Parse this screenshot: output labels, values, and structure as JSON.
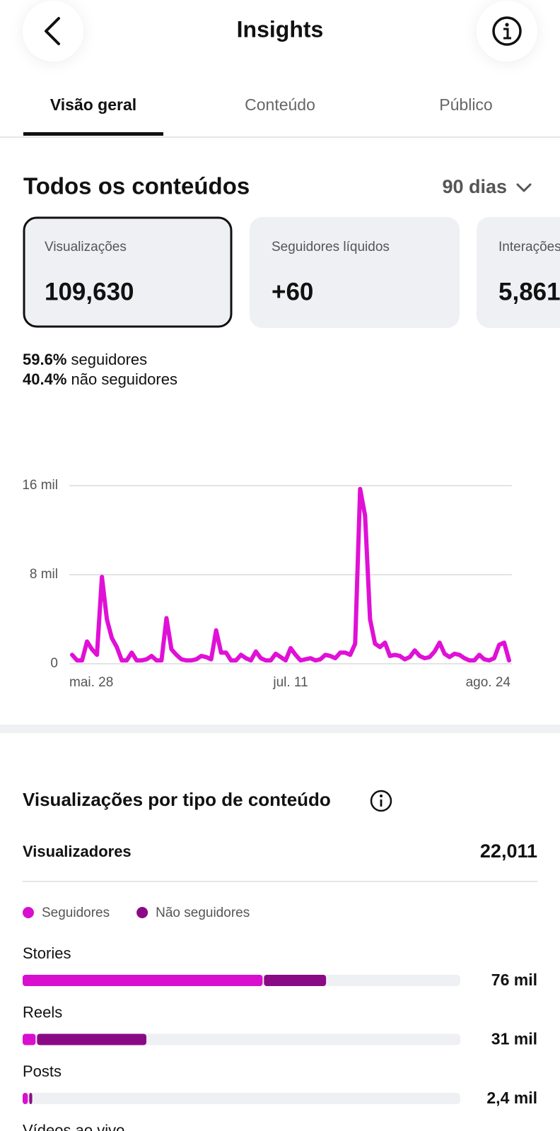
{
  "header": {
    "title": "Insights"
  },
  "tabs": [
    "Visão geral",
    "Conteúdo",
    "Público"
  ],
  "section": {
    "title": "Todos os conteúdos",
    "period": "90 dias"
  },
  "cards": [
    {
      "label": "Visualizações",
      "value": "109,630"
    },
    {
      "label": "Seguidores líquidos",
      "value": "+60"
    },
    {
      "label": "Interações",
      "value": "5,861"
    }
  ],
  "breakdown": [
    {
      "share": "59.6%",
      "label": "seguidores"
    },
    {
      "share": "40.4%",
      "label": "não seguidores"
    }
  ],
  "content_section": {
    "title": "Visualizações por tipo de conteúdo",
    "viewers_label": "Visualizadores",
    "viewers_value": "22,011"
  },
  "chart_data": [
    {
      "type": "line",
      "categories": [
        "mai. 28",
        null,
        null,
        null,
        null,
        null,
        null,
        null,
        null,
        null,
        null,
        null,
        null,
        null,
        null,
        null,
        null,
        null,
        null,
        null,
        null,
        null,
        null,
        null,
        null,
        null,
        null,
        null,
        null,
        null,
        null,
        null,
        null,
        null,
        null,
        null,
        null,
        null,
        null,
        null,
        null,
        null,
        null,
        null,
        "jul. 11",
        null,
        null,
        null,
        null,
        null,
        null,
        null,
        null,
        null,
        null,
        null,
        null,
        null,
        null,
        null,
        null,
        null,
        null,
        null,
        null,
        null,
        null,
        null,
        null,
        null,
        null,
        null,
        null,
        null,
        null,
        null,
        null,
        null,
        null,
        null,
        null,
        null,
        null,
        null,
        null,
        null,
        null,
        null,
        "ago. 24"
      ],
      "series": [
        {
          "name": "Visualizações",
          "color": "#e010d6",
          "values": [
            800,
            300,
            300,
            2000,
            1300,
            800,
            7800,
            4000,
            2300,
            1500,
            300,
            300,
            1000,
            300,
            300,
            400,
            700,
            300,
            300,
            4100,
            1300,
            800,
            400,
            300,
            300,
            400,
            700,
            600,
            400,
            3000,
            1000,
            1000,
            300,
            300,
            800,
            500,
            300,
            1100,
            500,
            300,
            300,
            900,
            600,
            300,
            1400,
            800,
            300,
            400,
            500,
            300,
            400,
            800,
            700,
            500,
            1000,
            1000,
            800,
            1800,
            15700,
            13300,
            4000,
            1800,
            1500,
            1900,
            700,
            800,
            700,
            400,
            600,
            1200,
            700,
            500,
            600,
            1100,
            1900,
            900,
            600,
            900,
            800,
            500,
            300,
            300,
            800,
            400,
            300,
            500,
            1700,
            1900,
            300
          ]
        }
      ],
      "ylim": [
        0,
        16000
      ],
      "yticks": [
        0,
        {
          "value": 8000,
          "label": "8 mil"
        },
        {
          "value": 16000,
          "label": "16 mil"
        }
      ],
      "grid": true
    },
    {
      "type": "bar",
      "orientation": "horizontal",
      "stacked": true,
      "categories": [
        "Stories",
        "Reels",
        "Posts",
        "Vídeos ao vivo"
      ],
      "series": [
        {
          "name": "Seguidores",
          "color": "#d90fcf",
          "values": [
            60100,
            3250,
            1300,
            null
          ]
        },
        {
          "name": "Não seguidores",
          "color": "#8a0a86",
          "values": [
            15900,
            27750,
            1100,
            null
          ]
        }
      ],
      "values": [
        76000,
        31000,
        2400,
        null
      ],
      "value_labels": [
        "76 mil",
        "31 mil",
        "2,4 mil",
        null
      ],
      "xlim": [
        0,
        109630
      ]
    }
  ]
}
